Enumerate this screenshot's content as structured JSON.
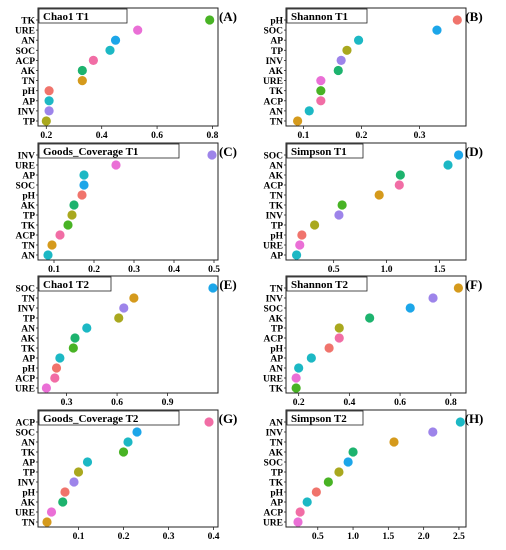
{
  "colors": [
    "#f0746c",
    "#d59a1c",
    "#a9a81e",
    "#48b324",
    "#1db36e",
    "#1cb8c4",
    "#1ca6e9",
    "#9d84ea",
    "#ea6fd6",
    "#f16da5"
  ],
  "chart_data": [
    {
      "type": "scatter",
      "title": "Chao1 T1",
      "panel": "(A)",
      "xlim": [
        0.17,
        0.82
      ],
      "ticks": [
        0.2,
        0.4,
        0.6,
        0.8
      ],
      "tick_labels": [
        "0.2",
        "0.4",
        "0.6",
        "0.8"
      ],
      "categories": [
        "TK",
        "URE",
        "AN",
        "SOC",
        "ACP",
        "AK",
        "TN",
        "pH",
        "AP",
        "INV",
        "TP"
      ],
      "values": [
        0.79,
        0.53,
        0.45,
        0.43,
        0.37,
        0.33,
        0.33,
        0.21,
        0.21,
        0.21,
        0.2
      ],
      "colors": [
        "#48b324",
        "#ea6fd6",
        "#1ca6e9",
        "#1cb8c4",
        "#f16da5",
        "#1db36e",
        "#d59a1c",
        "#f0746c",
        "#1cb8c4",
        "#9d84ea",
        "#a9a81e"
      ]
    },
    {
      "type": "scatter",
      "title": "Shannon T1",
      "panel": "(B)",
      "xlim": [
        0.07,
        0.38
      ],
      "ticks": [
        0.1,
        0.2,
        0.3
      ],
      "tick_labels": [
        "0.1",
        "0.2",
        "0.3"
      ],
      "categories": [
        "pH",
        "SOC",
        "AP",
        "TP",
        "INV",
        "AK",
        "URE",
        "TK",
        "ACP",
        "AN",
        "TN"
      ],
      "values": [
        0.365,
        0.33,
        0.195,
        0.175,
        0.165,
        0.16,
        0.13,
        0.13,
        0.13,
        0.11,
        0.09
      ],
      "colors": [
        "#f0746c",
        "#1ca6e9",
        "#1cb8c4",
        "#a9a81e",
        "#9d84ea",
        "#1db36e",
        "#ea6fd6",
        "#48b324",
        "#f16da5",
        "#1cb8c4",
        "#d59a1c"
      ]
    },
    {
      "type": "scatter",
      "title": "Goods_Coverage T1",
      "panel": "(C)",
      "xlim": [
        0.06,
        0.51
      ],
      "ticks": [
        0.1,
        0.2,
        0.3,
        0.4,
        0.5
      ],
      "tick_labels": [
        "0.1",
        "0.2",
        "0.3",
        "0.4",
        "0.5"
      ],
      "categories": [
        "INV",
        "URE",
        "AP",
        "SOC",
        "pH",
        "AK",
        "TP",
        "TK",
        "ACP",
        "TN",
        "AN"
      ],
      "values": [
        0.495,
        0.255,
        0.175,
        0.175,
        0.17,
        0.15,
        0.145,
        0.135,
        0.115,
        0.095,
        0.085
      ],
      "colors": [
        "#9d84ea",
        "#ea6fd6",
        "#1cb8c4",
        "#1ca6e9",
        "#f0746c",
        "#1db36e",
        "#a9a81e",
        "#48b324",
        "#f16da5",
        "#d59a1c",
        "#1cb8c4"
      ]
    },
    {
      "type": "scatter",
      "title": "Simpson T1",
      "panel": "(D)",
      "xlim": [
        0.05,
        1.75
      ],
      "ticks": [
        0.5,
        1.0,
        1.5
      ],
      "tick_labels": [
        "0.5",
        "1.0",
        "1.5"
      ],
      "categories": [
        "SOC",
        "AN",
        "AK",
        "ACP",
        "TN",
        "TK",
        "INV",
        "TP",
        "pH",
        "URE",
        "AP"
      ],
      "values": [
        1.68,
        1.58,
        1.13,
        1.12,
        0.93,
        0.58,
        0.55,
        0.32,
        0.2,
        0.18,
        0.15
      ],
      "colors": [
        "#1ca6e9",
        "#1cb8c4",
        "#1db36e",
        "#f16da5",
        "#d59a1c",
        "#48b324",
        "#9d84ea",
        "#a9a81e",
        "#f0746c",
        "#ea6fd6",
        "#1cb8c4"
      ]
    },
    {
      "type": "scatter",
      "title": "Chao1 T2",
      "panel": "(E)",
      "xlim": [
        0.13,
        1.2
      ],
      "ticks": [
        0.3,
        0.6,
        0.9
      ],
      "tick_labels": [
        "0.3",
        "0.6",
        "0.9"
      ],
      "categories": [
        "SOC",
        "TN",
        "INV",
        "TP",
        "AN",
        "AK",
        "TK",
        "AP",
        "pH",
        "ACP",
        "URE"
      ],
      "values": [
        1.17,
        0.7,
        0.64,
        0.61,
        0.42,
        0.35,
        0.34,
        0.26,
        0.24,
        0.23,
        0.18
      ],
      "colors": [
        "#1ca6e9",
        "#d59a1c",
        "#9d84ea",
        "#a9a81e",
        "#1cb8c4",
        "#1db36e",
        "#48b324",
        "#1cb8c4",
        "#f0746c",
        "#f16da5",
        "#ea6fd6"
      ]
    },
    {
      "type": "scatter",
      "title": "Shannon T2",
      "panel": "(F)",
      "xlim": [
        0.15,
        0.86
      ],
      "ticks": [
        0.2,
        0.4,
        0.6,
        0.8
      ],
      "tick_labels": [
        "0.2",
        "0.4",
        "0.6",
        "0.8"
      ],
      "categories": [
        "TN",
        "INV",
        "SOC",
        "AK",
        "TP",
        "ACP",
        "pH",
        "AP",
        "AN",
        "URE",
        "TK"
      ],
      "values": [
        0.83,
        0.73,
        0.64,
        0.48,
        0.36,
        0.36,
        0.32,
        0.25,
        0.2,
        0.19,
        0.19
      ],
      "colors": [
        "#d59a1c",
        "#9d84ea",
        "#1ca6e9",
        "#1db36e",
        "#a9a81e",
        "#f16da5",
        "#f0746c",
        "#1cb8c4",
        "#1cb8c4",
        "#ea6fd6",
        "#48b324"
      ]
    },
    {
      "type": "scatter",
      "title": "Goods_Coverage T2",
      "panel": "(G)",
      "xlim": [
        0.01,
        0.41
      ],
      "ticks": [
        0.1,
        0.2,
        0.3,
        0.4
      ],
      "tick_labels": [
        "0.1",
        "0.2",
        "0.3",
        "0.4"
      ],
      "categories": [
        "ACP",
        "SOC",
        "AN",
        "TK",
        "AP",
        "TP",
        "INV",
        "pH",
        "AK",
        "URE",
        "TN"
      ],
      "values": [
        0.39,
        0.23,
        0.21,
        0.2,
        0.12,
        0.1,
        0.09,
        0.07,
        0.065,
        0.04,
        0.03
      ],
      "colors": [
        "#f16da5",
        "#1ca6e9",
        "#1cb8c4",
        "#48b324",
        "#1cb8c4",
        "#a9a81e",
        "#9d84ea",
        "#f0746c",
        "#1db36e",
        "#ea6fd6",
        "#d59a1c"
      ]
    },
    {
      "type": "scatter",
      "title": "Simpson T2",
      "panel": "(H)",
      "xlim": [
        0.05,
        2.6
      ],
      "ticks": [
        0.5,
        1.0,
        1.5,
        2.0,
        2.5
      ],
      "tick_labels": [
        "0.5",
        "1.0",
        "1.5",
        "2.0",
        "2.5"
      ],
      "categories": [
        "AN",
        "INV",
        "TN",
        "AK",
        "SOC",
        "TP",
        "TK",
        "pH",
        "AP",
        "ACP",
        "URE"
      ],
      "values": [
        2.52,
        2.13,
        1.58,
        1.0,
        0.93,
        0.8,
        0.65,
        0.48,
        0.35,
        0.25,
        0.22
      ],
      "colors": [
        "#1cb8c4",
        "#9d84ea",
        "#d59a1c",
        "#1db36e",
        "#1ca6e9",
        "#a9a81e",
        "#48b324",
        "#f0746c",
        "#1cb8c4",
        "#f16da5",
        "#ea6fd6"
      ]
    }
  ]
}
